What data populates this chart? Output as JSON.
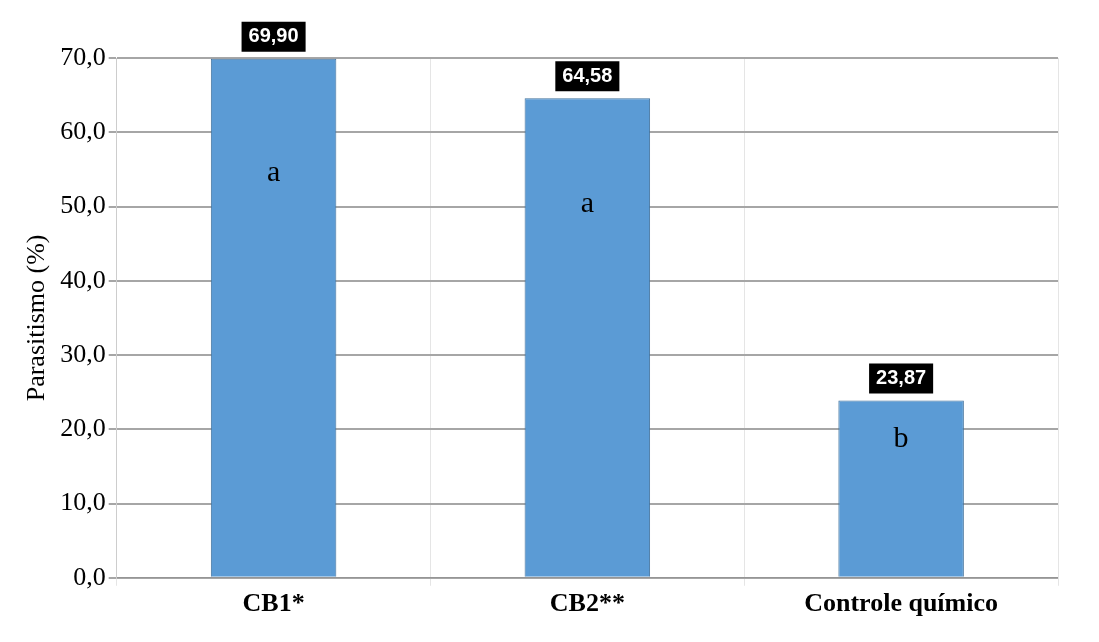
{
  "chart_data": {
    "type": "bar",
    "ylabel": "Parasitismo (%)",
    "categories": [
      "CB1*",
      "CB2**",
      "Controle químico"
    ],
    "values": [
      69.9,
      64.58,
      23.87
    ],
    "value_labels": [
      "69,90",
      "64,58",
      "23,87"
    ],
    "color": "#5b9bd5",
    "ylim": [
      0,
      70
    ],
    "yticks": [
      {
        "value": 0,
        "label": "0,0"
      },
      {
        "value": 10,
        "label": "10,0"
      },
      {
        "value": 20,
        "label": "20,0"
      },
      {
        "value": 30,
        "label": "30,0"
      },
      {
        "value": 40,
        "label": "40,0"
      },
      {
        "value": 50,
        "label": "50,0"
      },
      {
        "value": 60,
        "label": "60,0"
      },
      {
        "value": 70,
        "label": "70,0"
      }
    ],
    "annotations": [
      "a",
      "a",
      "b"
    ],
    "grid": true,
    "legend": false
  }
}
